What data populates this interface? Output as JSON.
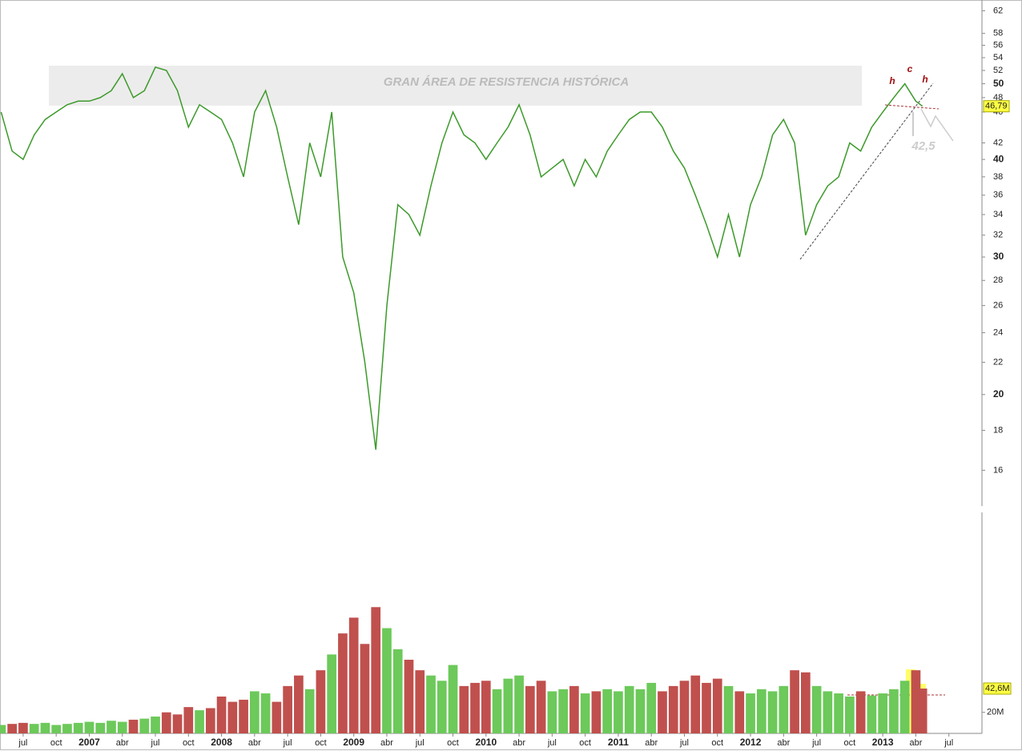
{
  "chart_data": [
    {
      "type": "line",
      "log_scale": true,
      "color": "#3c9a2a",
      "xlim": [
        3.9,
        93
      ],
      "x": [
        4,
        5,
        6,
        7,
        8,
        9,
        10,
        11,
        12,
        13,
        14,
        15,
        16,
        17,
        18,
        19,
        20,
        21,
        22,
        23,
        24,
        25,
        26,
        27,
        28,
        29,
        30,
        31,
        32,
        33,
        34,
        35,
        36,
        37,
        38,
        39,
        40,
        41,
        42,
        43,
        44,
        45,
        46,
        47,
        48,
        49,
        50,
        51,
        52,
        53,
        54,
        55,
        56,
        57,
        58,
        59,
        60,
        61,
        62,
        63,
        64,
        65,
        66,
        67,
        68,
        69,
        70,
        71,
        72,
        73,
        74,
        75,
        76,
        77,
        78,
        79,
        80,
        81,
        82,
        83,
        84,
        85,
        86,
        87,
        87.6
      ],
      "values": [
        46,
        41,
        40,
        43,
        45,
        46,
        47,
        47.5,
        47.5,
        48,
        49,
        51.5,
        48,
        49,
        52.5,
        52,
        49,
        44,
        47,
        46,
        45,
        42,
        38,
        46,
        49,
        44,
        38,
        33,
        42,
        38,
        46,
        30,
        27,
        22,
        17,
        26,
        35,
        34,
        32,
        37,
        42,
        46,
        43,
        42,
        40,
        42,
        44,
        47,
        43,
        38,
        39,
        40,
        37,
        40,
        38,
        41,
        43,
        45,
        46,
        46,
        44,
        41,
        39,
        36,
        33,
        30,
        34,
        30,
        35,
        38,
        43,
        45,
        42,
        32,
        35,
        37,
        38,
        42,
        41,
        44,
        46,
        48,
        50,
        47.5,
        46.79
      ],
      "ylim": [
        14.4,
        64
      ],
      "yticks": [
        16,
        18,
        20,
        22,
        24,
        26,
        28,
        30,
        32,
        34,
        36,
        38,
        40,
        42,
        46,
        48,
        50,
        52,
        54,
        56,
        58,
        62
      ],
      "last_value": {
        "value": 46.79,
        "label": "46,79"
      },
      "annotations": [
        "GRAN ÁREA DE RESISTENCIA HISTÓRICA",
        "h",
        "c",
        "h",
        "42,5"
      ]
    },
    {
      "type": "bar",
      "up_color": "#6cc95a",
      "down_color": "#c0504d",
      "xlim": [
        3.9,
        93
      ],
      "x": [
        4,
        5,
        6,
        7,
        8,
        9,
        10,
        11,
        12,
        13,
        14,
        15,
        16,
        17,
        18,
        19,
        20,
        21,
        22,
        23,
        24,
        25,
        26,
        27,
        28,
        29,
        30,
        31,
        32,
        33,
        34,
        35,
        36,
        37,
        38,
        39,
        40,
        41,
        42,
        43,
        44,
        45,
        46,
        47,
        48,
        49,
        50,
        51,
        52,
        53,
        54,
        55,
        56,
        57,
        58,
        59,
        60,
        61,
        62,
        63,
        64,
        65,
        66,
        67,
        68,
        69,
        70,
        71,
        72,
        73,
        74,
        75,
        76,
        77,
        78,
        79,
        80,
        81,
        82,
        83,
        84,
        85,
        86,
        87,
        87.6
      ],
      "values": [
        8000000,
        9000000,
        10000000,
        9000000,
        10000000,
        8000000,
        9000000,
        10000000,
        11000000,
        10000000,
        12000000,
        11000000,
        13000000,
        14000000,
        16000000,
        20000000,
        18000000,
        25000000,
        22000000,
        24000000,
        35000000,
        30000000,
        32000000,
        40000000,
        38000000,
        30000000,
        45000000,
        55000000,
        42000000,
        60000000,
        75000000,
        95000000,
        110000000,
        85000000,
        120000000,
        100000000,
        80000000,
        70000000,
        60000000,
        55000000,
        50000000,
        65000000,
        45000000,
        48000000,
        50000000,
        42000000,
        52000000,
        55000000,
        45000000,
        50000000,
        40000000,
        42000000,
        45000000,
        38000000,
        40000000,
        42000000,
        40000000,
        45000000,
        42000000,
        48000000,
        40000000,
        45000000,
        50000000,
        55000000,
        48000000,
        52000000,
        45000000,
        40000000,
        38000000,
        42000000,
        40000000,
        45000000,
        60000000,
        58000000,
        45000000,
        40000000,
        38000000,
        35000000,
        40000000,
        36000000,
        38000000,
        42000000,
        50000000,
        60000000,
        42600000
      ],
      "ylim": [
        0,
        210000000
      ],
      "yticks": [
        {
          "value": 20000000,
          "label": "20M"
        }
      ],
      "last_value": {
        "value": 42600000,
        "label": "42,6M"
      },
      "xticks": [
        {
          "value": 6,
          "label": "jul"
        },
        {
          "value": 9,
          "label": "oct"
        },
        {
          "value": 12,
          "label": "2007"
        },
        {
          "value": 15,
          "label": "abr"
        },
        {
          "value": 18,
          "label": "jul"
        },
        {
          "value": 21,
          "label": "oct"
        },
        {
          "value": 24,
          "label": "2008"
        },
        {
          "value": 27,
          "label": "abr"
        },
        {
          "value": 30,
          "label": "jul"
        },
        {
          "value": 33,
          "label": "oct"
        },
        {
          "value": 36,
          "label": "2009"
        },
        {
          "value": 39,
          "label": "abr"
        },
        {
          "value": 42,
          "label": "jul"
        },
        {
          "value": 45,
          "label": "oct"
        },
        {
          "value": 48,
          "label": "2010"
        },
        {
          "value": 51,
          "label": "abr"
        },
        {
          "value": 54,
          "label": "jul"
        },
        {
          "value": 57,
          "label": "oct"
        },
        {
          "value": 60,
          "label": "2011"
        },
        {
          "value": 63,
          "label": "abr"
        },
        {
          "value": 66,
          "label": "jul"
        },
        {
          "value": 69,
          "label": "oct"
        },
        {
          "value": 72,
          "label": "2012"
        },
        {
          "value": 75,
          "label": "abr"
        },
        {
          "value": 78,
          "label": "jul"
        },
        {
          "value": 81,
          "label": "oct"
        },
        {
          "value": 84,
          "label": "2013"
        },
        {
          "value": 87,
          "label": "abr"
        },
        {
          "value": 90,
          "label": "jul"
        }
      ]
    }
  ]
}
